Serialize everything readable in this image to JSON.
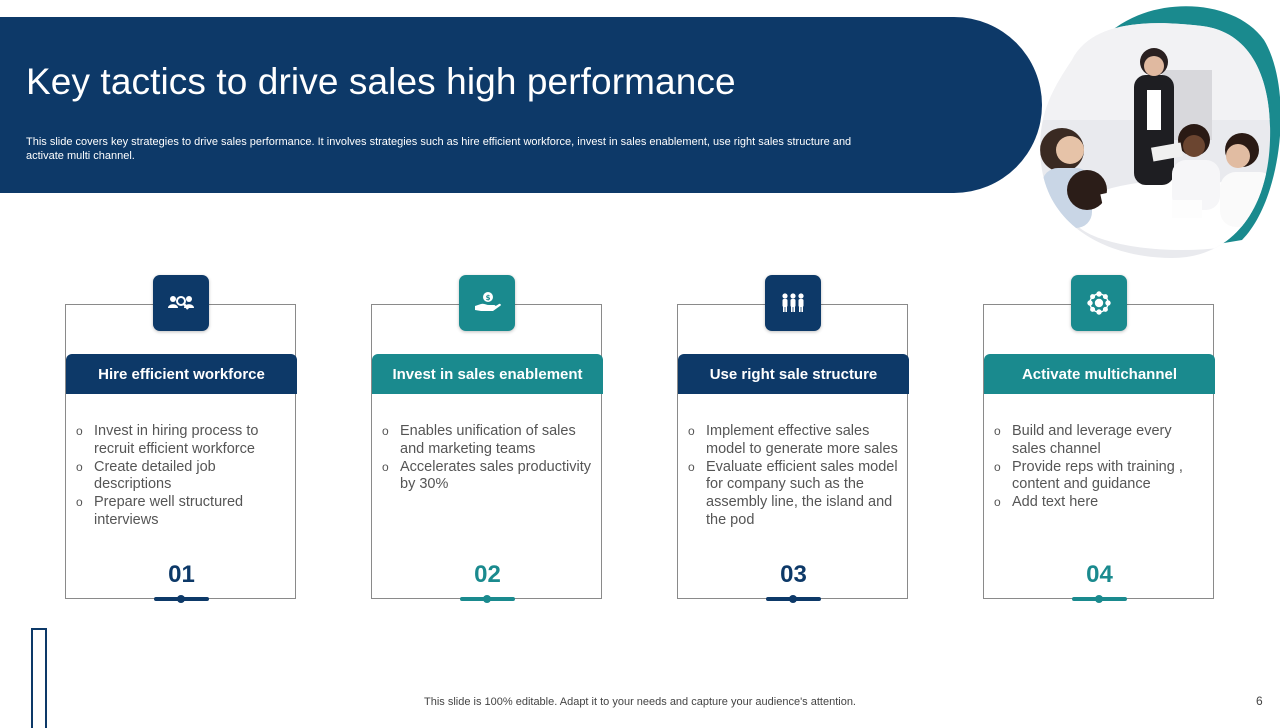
{
  "slide": {
    "title": "Key tactics to drive sales high performance",
    "subtitle": "This slide covers key strategies to drive sales performance. It involves strategies such as hire efficient workforce, invest in sales enablement, use right sales structure and activate multi channel.",
    "footer": "This slide is 100% editable. Adapt it to your needs and capture your audience's attention.",
    "page_number": "6"
  },
  "colors": {
    "navy": "#0d3968",
    "teal": "#1a8a8e"
  },
  "cards": [
    {
      "title": "Hire efficient workforce",
      "icon": "people-search-icon",
      "color": "navy",
      "bullets": [
        "Invest in hiring process to recruit efficient workforce",
        "Create detailed job descriptions",
        "Prepare well structured interviews"
      ],
      "number": "01"
    },
    {
      "title": "Invest in sales enablement",
      "icon": "hand-money-icon",
      "color": "teal",
      "bullets": [
        "Enables unification of sales and marketing teams",
        "Accelerates sales productivity by 30%"
      ],
      "number": "02"
    },
    {
      "title": "Use right sale structure",
      "icon": "team-icon",
      "color": "navy",
      "bullets": [
        "Implement effective sales model to generate more sales",
        "Evaluate efficient sales model for company such as the assembly line, the island and the pod"
      ],
      "number": "03"
    },
    {
      "title": "Activate multichannel",
      "icon": "network-icon",
      "color": "teal",
      "bullets": [
        "Build and leverage every sales channel",
        "Provide reps with training , content and guidance",
        "Add text here"
      ],
      "number": "04"
    }
  ]
}
